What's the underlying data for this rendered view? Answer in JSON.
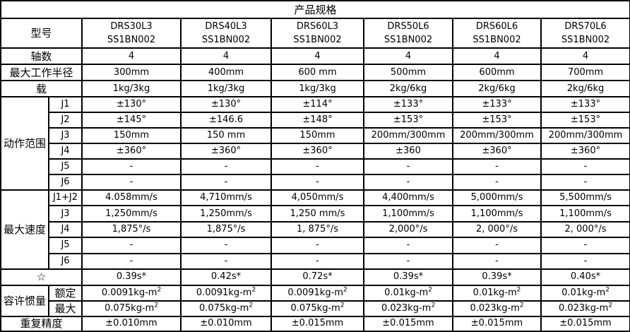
{
  "title": "产品规格",
  "models": [
    {
      "line1": "DRS30L3",
      "line2": "SS1BN002"
    },
    {
      "line1": "DRS40L3",
      "line2": "SS1BN002"
    },
    {
      "line1": "DRS60L3",
      "line2": "SS1BN002"
    },
    {
      "line1": "DRS50L6",
      "line2": "SS1BN002"
    },
    {
      "line1": "DRS60L6",
      "line2": "SS1BN002"
    },
    {
      "line1": "DRS70L6",
      "line2": "SS1BN002"
    }
  ],
  "labels": {
    "model": "型号",
    "axes": "轴数",
    "radius": "最大工作半径",
    "payload": "载",
    "range": "动作范围",
    "speed": "最大速度",
    "star": "☆",
    "inertia": "容许惯量",
    "rated": "额定",
    "max": "最大",
    "repeat": "重复精度"
  },
  "rows": {
    "axes": [
      "4",
      "4",
      "4",
      "4",
      "4",
      "4"
    ],
    "radius": [
      "300mm",
      "400mm",
      "600 mm",
      "500mm",
      "600mm",
      "700mm"
    ],
    "payload": [
      "1kg/3kg",
      "1kg/3kg",
      "1kg/3kg",
      "2kg/6kg",
      "2kg/6kg",
      "2kg/6kg"
    ],
    "star": [
      "0.39s*",
      "0.42s*",
      "0.72s*",
      "0.39s*",
      "0.39s*",
      "0.40s*"
    ],
    "repeat": [
      "±0.010mm",
      "±0.010mm",
      "±0.015mm",
      "±0.015mm",
      "±0.015mm",
      "±0.015mm"
    ]
  },
  "range": [
    {
      "joint": "J1",
      "values": [
        "±130°",
        "±130°",
        "±114°",
        "±133°",
        "±133°",
        "±133°"
      ]
    },
    {
      "joint": "J2",
      "values": [
        "±145°",
        "±146.6",
        "±148°",
        "±153°",
        "±153°",
        "±153°"
      ]
    },
    {
      "joint": "J3",
      "values": [
        "150mm",
        "150 mm",
        "150mm",
        "200mm/300mm",
        "200mm/300mm",
        "200mm/300mm"
      ]
    },
    {
      "joint": "J4",
      "values": [
        "±360°",
        "±360°",
        "±360°",
        "±360",
        "±360°",
        "±360°"
      ]
    },
    {
      "joint": "J5",
      "values": [
        "-",
        "-",
        "-",
        "-",
        "-",
        "-"
      ]
    },
    {
      "joint": "J6",
      "values": [
        "-",
        "-",
        "-",
        "-",
        "-",
        "-"
      ]
    }
  ],
  "speed": [
    {
      "joint": "J1+J2",
      "values": [
        "4.058mm/s",
        "4,710mm/s",
        "4,050mm/s",
        "4,400mm/s",
        "5,000mm/s",
        "5,500mm/s"
      ]
    },
    {
      "joint": "J3",
      "values": [
        "1,250mm/s",
        "1,250mm/s",
        "1,250 mm/s",
        "1,100mm/s",
        "1,100mm/s",
        "1,100mm/s"
      ]
    },
    {
      "joint": "J4",
      "values": [
        "1,875°/s",
        "1,875°/s",
        "1, 875°/s",
        "2,000°/s",
        "2, 000°/s",
        "2, 000°/s"
      ]
    },
    {
      "joint": "J5",
      "values": [
        "-",
        "-",
        "-",
        "-",
        "-",
        "-"
      ]
    },
    {
      "joint": "J6",
      "values": [
        "-",
        "-",
        "-",
        "-",
        "-",
        "-"
      ]
    }
  ],
  "inertia": {
    "unit_sup": "2",
    "rated": [
      "0.0091kg-m",
      "0.0091kg-m",
      "0.0091kg-m",
      "0.01kg-m",
      "0.01kg-m",
      "0.01kg-m"
    ],
    "max": [
      "0.075kg-m",
      "0.075kg-m",
      "0.075kg-m",
      "0.023kg-m",
      "0.023kg-m",
      "0.023kg-m"
    ]
  }
}
